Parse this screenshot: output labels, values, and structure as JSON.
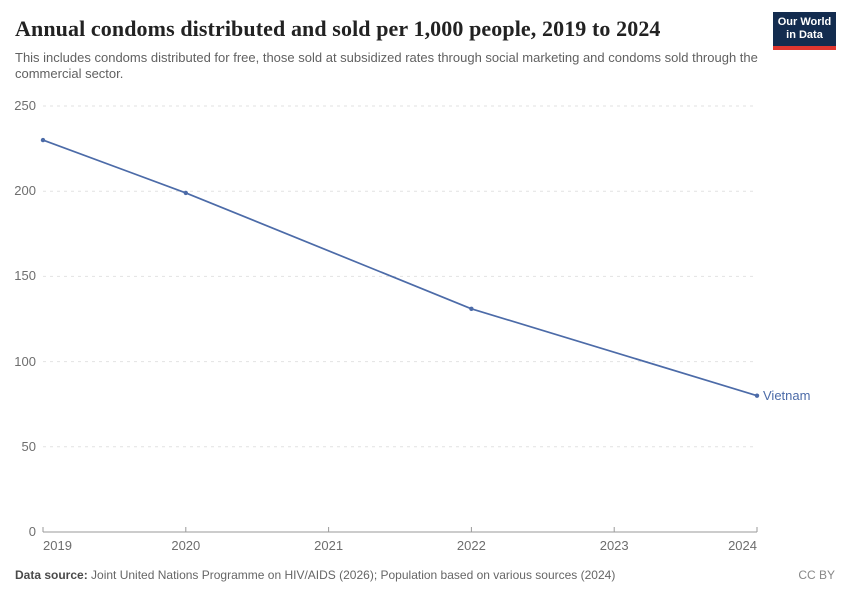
{
  "header": {
    "title": "Annual condoms distributed and sold per 1,000 people, 2019 to 2024",
    "subtitle": "This includes condoms distributed for free, those sold at subsidized rates through social marketing and condoms sold through the commercial sector.",
    "logo": {
      "line1": "Our World",
      "line2": "in Data",
      "bg_color": "#132c4f",
      "accent_color": "#e0362f"
    }
  },
  "footer": {
    "source_label": "Data source:",
    "source_text": " Joint United Nations Programme on HIV/AIDS (2026); Population based on various sources (2024)",
    "license": "CC BY"
  },
  "chart_data": {
    "type": "line",
    "title": "Annual condoms distributed and sold per 1,000 people, 2019 to 2024",
    "xlabel": "",
    "ylabel": "",
    "xlim": [
      2019,
      2024
    ],
    "ylim": [
      0,
      250
    ],
    "xticks": [
      2019,
      2020,
      2021,
      2022,
      2023,
      2024
    ],
    "yticks": [
      0,
      50,
      100,
      150,
      200,
      250
    ],
    "grid": "horizontal-dashed",
    "legend_position": "end-of-line",
    "series": [
      {
        "name": "Vietnam",
        "color": "#4c6ba8",
        "points": [
          {
            "x": 2019,
            "y": 230
          },
          {
            "x": 2020,
            "y": 199
          },
          {
            "x": 2022,
            "y": 131
          },
          {
            "x": 2024,
            "y": 80
          }
        ]
      }
    ],
    "style": {
      "gridline_color": "#e2e2e2",
      "axis_color": "#9a9a9a",
      "tick_label_color": "#6e6e6e"
    }
  }
}
